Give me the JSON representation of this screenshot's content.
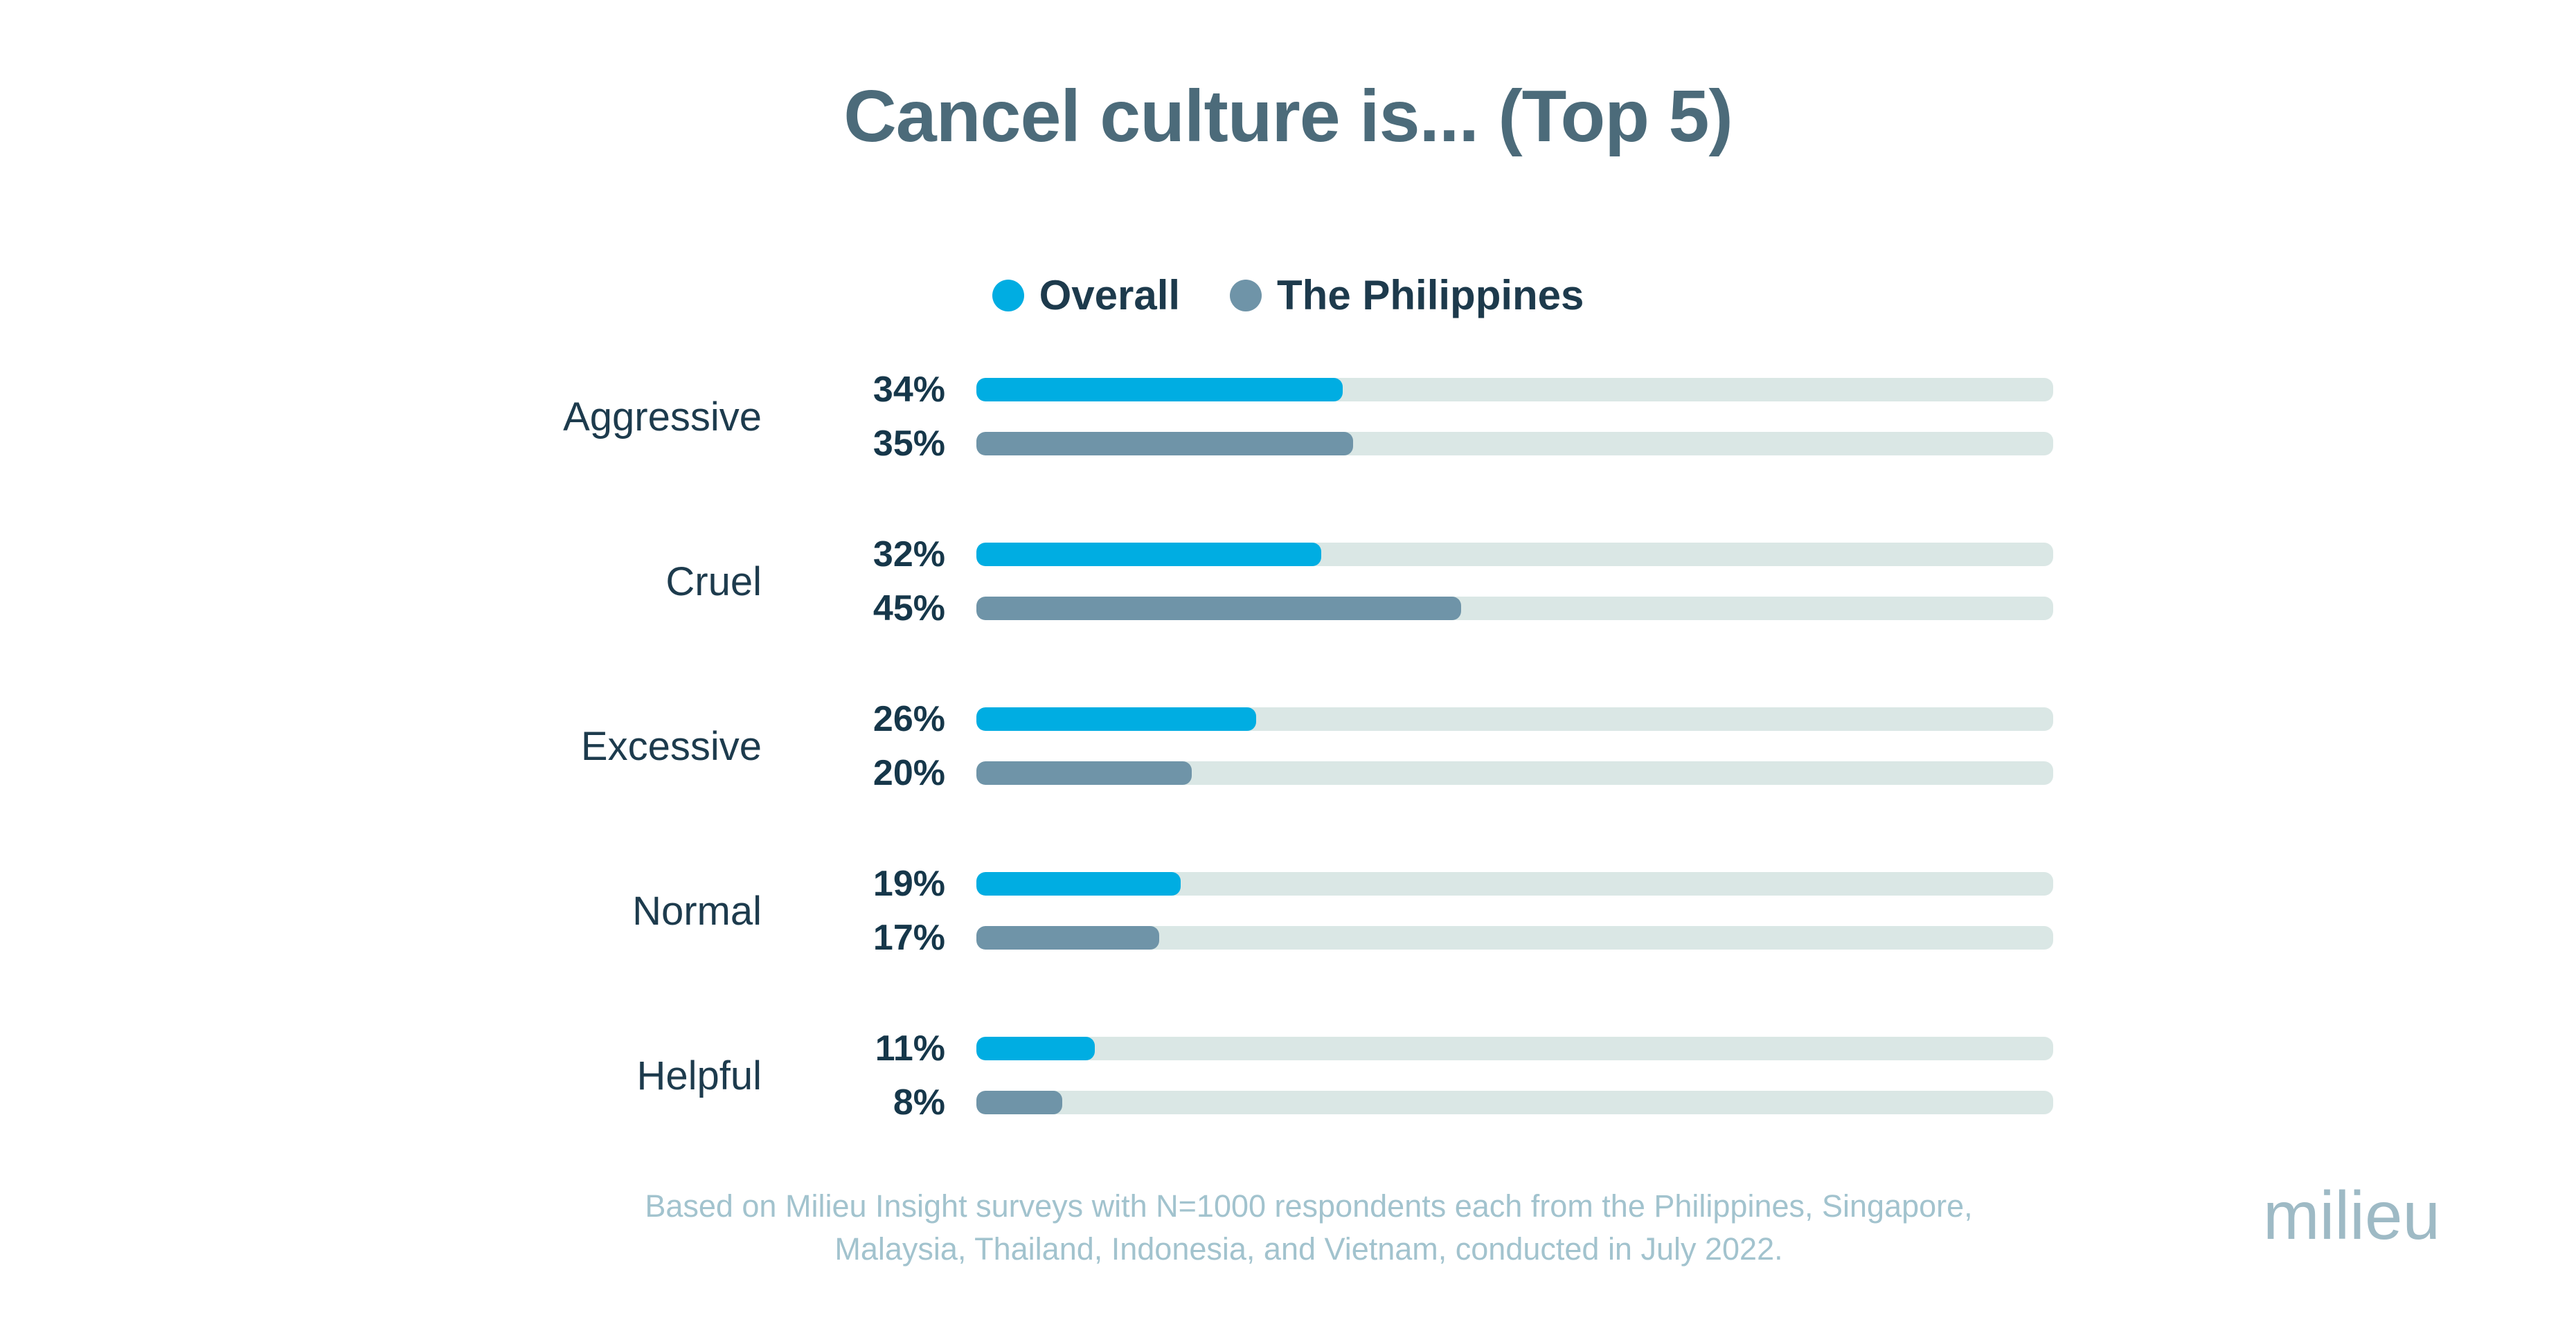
{
  "chart_data": {
    "type": "bar",
    "orientation": "horizontal",
    "title": "Cancel culture is... (Top 5)",
    "categories": [
      "Aggressive",
      "Cruel",
      "Excessive",
      "Normal",
      "Helpful"
    ],
    "series": [
      {
        "name": "Overall",
        "color": "#00ade2",
        "values": [
          34,
          32,
          26,
          19,
          11
        ]
      },
      {
        "name": "The Philippines",
        "color": "#6f94a8",
        "values": [
          35,
          45,
          20,
          17,
          8
        ]
      }
    ],
    "value_suffix": "%",
    "xlim": [
      0,
      100
    ],
    "grid": false,
    "legend_position": "top",
    "track_color": "#dae7e5"
  },
  "legend": {
    "items": [
      {
        "label": "Overall",
        "color": "#00ade2"
      },
      {
        "label": "The Philippines",
        "color": "#6f94a8"
      }
    ]
  },
  "footnote": {
    "line1": "Based on Milieu Insight surveys with N=1000 respondents each from the Philippines, Singapore,",
    "line2": "Malaysia, Thailand, Indonesia, and Vietnam, conducted in July 2022."
  },
  "brand": {
    "logo_text": "milieu",
    "logo_color": "#9ebac5"
  },
  "colors": {
    "title_text": "#4c6b7a",
    "label_text": "#1d3b4d",
    "footnote_text": "#a2c3ce",
    "background": "#ffffff"
  }
}
